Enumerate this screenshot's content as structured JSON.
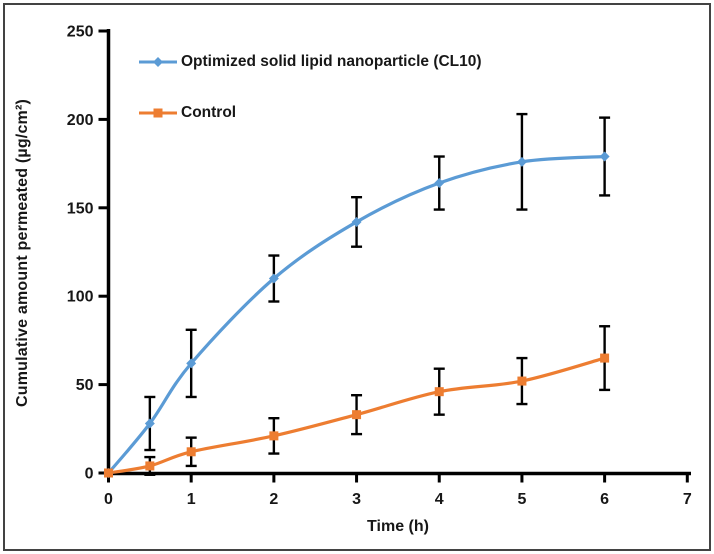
{
  "figure": {
    "border_color": "#434343",
    "background": "#ffffff"
  },
  "chart_data": {
    "type": "line",
    "title": "",
    "xlabel": "Time (h)",
    "ylabel": "Cumulative amount permeated (µg/cm²)",
    "x": [
      0,
      0.5,
      1,
      2,
      3,
      4,
      5,
      6
    ],
    "series": [
      {
        "name": "Optimized solid lipid nanoparticle (CL10)",
        "color": "#5B9BD5",
        "marker": "diamond",
        "values": [
          0,
          28,
          62,
          110,
          142,
          164,
          176,
          179
        ],
        "errors": [
          0,
          15,
          19,
          13,
          14,
          15,
          27,
          22
        ]
      },
      {
        "name": "Control",
        "color": "#ED7D31",
        "marker": "square",
        "values": [
          0,
          4,
          12,
          21,
          33,
          46,
          52,
          65
        ],
        "errors": [
          0,
          5,
          8,
          10,
          11,
          13,
          13,
          18
        ]
      }
    ],
    "xlim": [
      0,
      7
    ],
    "ylim": [
      0,
      250
    ],
    "x_ticks": [
      0,
      1,
      2,
      3,
      4,
      5,
      6,
      7
    ],
    "y_ticks": [
      0,
      50,
      100,
      150,
      200,
      250
    ],
    "grid": false,
    "legend_position": "top-left-inside",
    "axis_color": "#000000",
    "error_bar_color": "#000000"
  }
}
